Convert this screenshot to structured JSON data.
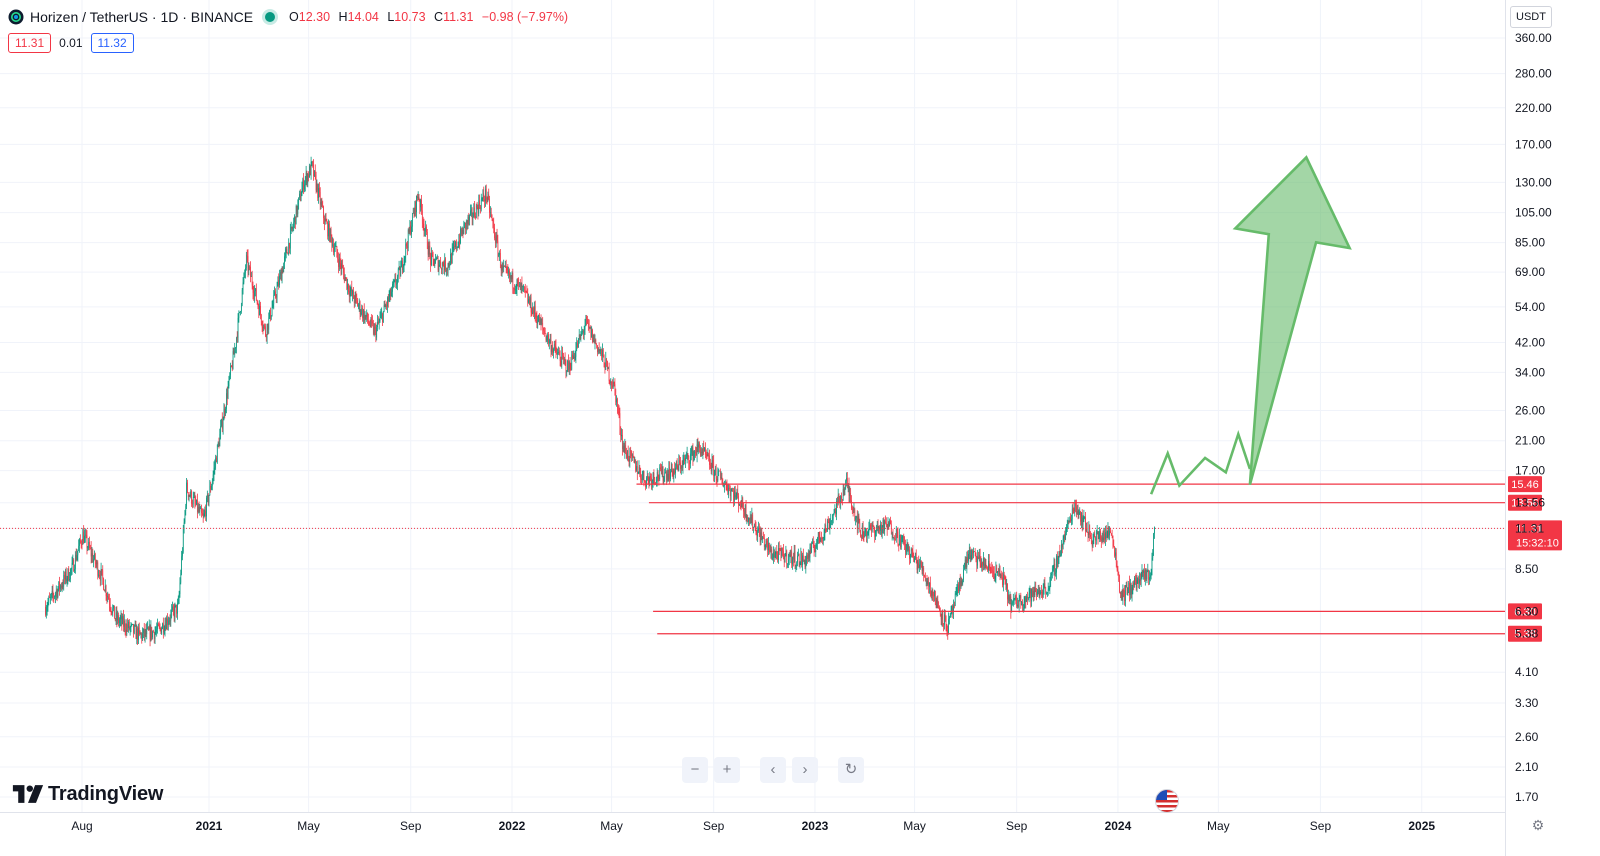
{
  "header": {
    "title": "Horizen / TetherUS · 1D · BINANCE",
    "ohlc": [
      {
        "key": "O",
        "value": "12.30"
      },
      {
        "key": "H",
        "value": "14.04"
      },
      {
        "key": "L",
        "value": "10.73"
      },
      {
        "key": "C",
        "value": "11.31"
      },
      {
        "key": "",
        "value": "−0.98 (−7.97%)"
      }
    ]
  },
  "quote": {
    "bid": "11.31",
    "spread": "0.01",
    "ask": "11.32"
  },
  "currency": "USDT",
  "brand": "TradingView",
  "colors": {
    "up": "#089981",
    "down": "#f23645",
    "level": "#f23645",
    "arrow": "#66bb6a",
    "grid": "#f0f3fa"
  },
  "icons": [
    "zoom-out-icon",
    "zoom-in-icon",
    "scroll-left-icon",
    "scroll-right-icon",
    "reset-icon",
    "us-flag-icon",
    "settings-icon"
  ],
  "chart_data": {
    "type": "candlestick",
    "scale": "log",
    "ylim": [
      1.55,
      400
    ],
    "y_ticks": [
      "360.00",
      "280.00",
      "220.00",
      "170.00",
      "130.00",
      "105.00",
      "85.00",
      "69.00",
      "54.00",
      "42.00",
      "34.00",
      "26.00",
      "21.00",
      "17.00",
      "13.56",
      "11.31",
      "8.50",
      "6.30",
      "5.38",
      "4.10",
      "3.30",
      "2.60",
      "2.10",
      "1.70"
    ],
    "x_labels": [
      {
        "date": "2020-08-01",
        "label": "Aug"
      },
      {
        "date": "2021-01-01",
        "label": "2021"
      },
      {
        "date": "2021-05-01",
        "label": "May"
      },
      {
        "date": "2021-09-01",
        "label": "Sep"
      },
      {
        "date": "2022-01-01",
        "label": "2022"
      },
      {
        "date": "2022-05-01",
        "label": "May"
      },
      {
        "date": "2022-09-01",
        "label": "Sep"
      },
      {
        "date": "2023-01-01",
        "label": "2023"
      },
      {
        "date": "2023-05-01",
        "label": "May"
      },
      {
        "date": "2023-09-01",
        "label": "Sep"
      },
      {
        "date": "2024-01-01",
        "label": "2024"
      },
      {
        "date": "2024-05-01",
        "label": "May"
      },
      {
        "date": "2024-09-01",
        "label": "Sep"
      },
      {
        "date": "2025-01-01",
        "label": "2025"
      }
    ],
    "price_path": [
      {
        "date": "2020-06-18",
        "close": 6.5
      },
      {
        "date": "2020-07-20",
        "close": 8.5
      },
      {
        "date": "2020-08-02",
        "close": 10.8
      },
      {
        "date": "2020-08-25",
        "close": 8.0
      },
      {
        "date": "2020-09-10",
        "close": 6.0
      },
      {
        "date": "2020-10-10",
        "close": 5.3
      },
      {
        "date": "2020-11-01",
        "close": 5.5
      },
      {
        "date": "2020-11-25",
        "close": 6.5
      },
      {
        "date": "2020-12-05",
        "close": 15.0
      },
      {
        "date": "2020-12-25",
        "close": 12.0
      },
      {
        "date": "2021-01-05",
        "close": 16.0
      },
      {
        "date": "2021-02-01",
        "close": 40.0
      },
      {
        "date": "2021-02-15",
        "close": 75.0
      },
      {
        "date": "2021-03-10",
        "close": 45.0
      },
      {
        "date": "2021-04-05",
        "close": 80.0
      },
      {
        "date": "2021-04-25",
        "close": 130.0
      },
      {
        "date": "2021-05-05",
        "close": 145.0
      },
      {
        "date": "2021-05-20",
        "close": 100.0
      },
      {
        "date": "2021-06-20",
        "close": 60.0
      },
      {
        "date": "2021-07-20",
        "close": 45.0
      },
      {
        "date": "2021-08-20",
        "close": 70.0
      },
      {
        "date": "2021-09-10",
        "close": 120.0
      },
      {
        "date": "2021-09-25",
        "close": 75.0
      },
      {
        "date": "2021-10-15",
        "close": 72.0
      },
      {
        "date": "2021-11-05",
        "close": 95.0
      },
      {
        "date": "2021-12-01",
        "close": 120.0
      },
      {
        "date": "2021-12-20",
        "close": 70.0
      },
      {
        "date": "2022-01-15",
        "close": 60.0
      },
      {
        "date": "2022-02-20",
        "close": 40.0
      },
      {
        "date": "2022-03-10",
        "close": 35.0
      },
      {
        "date": "2022-03-31",
        "close": 48.0
      },
      {
        "date": "2022-04-20",
        "close": 38.0
      },
      {
        "date": "2022-05-05",
        "close": 30.0
      },
      {
        "date": "2022-05-15",
        "close": 20.0
      },
      {
        "date": "2022-06-10",
        "close": 16.0
      },
      {
        "date": "2022-07-15",
        "close": 17.0
      },
      {
        "date": "2022-08-15",
        "close": 20.0
      },
      {
        "date": "2022-09-05",
        "close": 16.5
      },
      {
        "date": "2022-09-30",
        "close": 14.0
      },
      {
        "date": "2022-11-09",
        "close": 9.5
      },
      {
        "date": "2022-12-20",
        "close": 9.0
      },
      {
        "date": "2023-01-20",
        "close": 12.0
      },
      {
        "date": "2023-02-08",
        "close": 15.5
      },
      {
        "date": "2023-02-25",
        "close": 11.0
      },
      {
        "date": "2023-04-01",
        "close": 11.5
      },
      {
        "date": "2023-05-10",
        "close": 8.5
      },
      {
        "date": "2023-06-10",
        "close": 5.6
      },
      {
        "date": "2023-07-05",
        "close": 9.5
      },
      {
        "date": "2023-08-15",
        "close": 8.0
      },
      {
        "date": "2023-08-25",
        "close": 6.6
      },
      {
        "date": "2023-10-10",
        "close": 7.5
      },
      {
        "date": "2023-11-10",
        "close": 13.5
      },
      {
        "date": "2023-12-01",
        "close": 10.5
      },
      {
        "date": "2023-12-25",
        "close": 11.0
      },
      {
        "date": "2024-01-05",
        "close": 7.0
      },
      {
        "date": "2024-01-25",
        "close": 7.8
      },
      {
        "date": "2024-02-10",
        "close": 8.3
      },
      {
        "date": "2024-02-14",
        "close": 11.31
      }
    ],
    "horizontal_levels": [
      {
        "price": 15.46,
        "label": "15.46",
        "from": "2022-05-31"
      },
      {
        "price": 13.56,
        "label": "13.56",
        "from": "2022-06-15"
      },
      {
        "price": 6.3,
        "label": "6.30",
        "from": "2022-06-20"
      },
      {
        "price": 5.38,
        "label": "5.38",
        "from": "2022-06-25"
      }
    ],
    "last_price": {
      "price": 11.31,
      "label": "11.31",
      "countdown": "15:32:10"
    },
    "projection_path": [
      {
        "date": "2024-02-10",
        "price": 14.4
      },
      {
        "date": "2024-03-01",
        "price": 19.2
      },
      {
        "date": "2024-03-15",
        "price": 15.3
      },
      {
        "date": "2024-04-15",
        "price": 18.6
      },
      {
        "date": "2024-05-10",
        "price": 16.8
      },
      {
        "date": "2024-05-25",
        "price": 22.0
      },
      {
        "date": "2024-06-08",
        "price": 17.2
      }
    ],
    "projection_arrow": {
      "from": {
        "date": "2024-06-08",
        "price": 15.4
      },
      "to": {
        "date": "2024-08-15",
        "price": 155.0
      }
    }
  }
}
